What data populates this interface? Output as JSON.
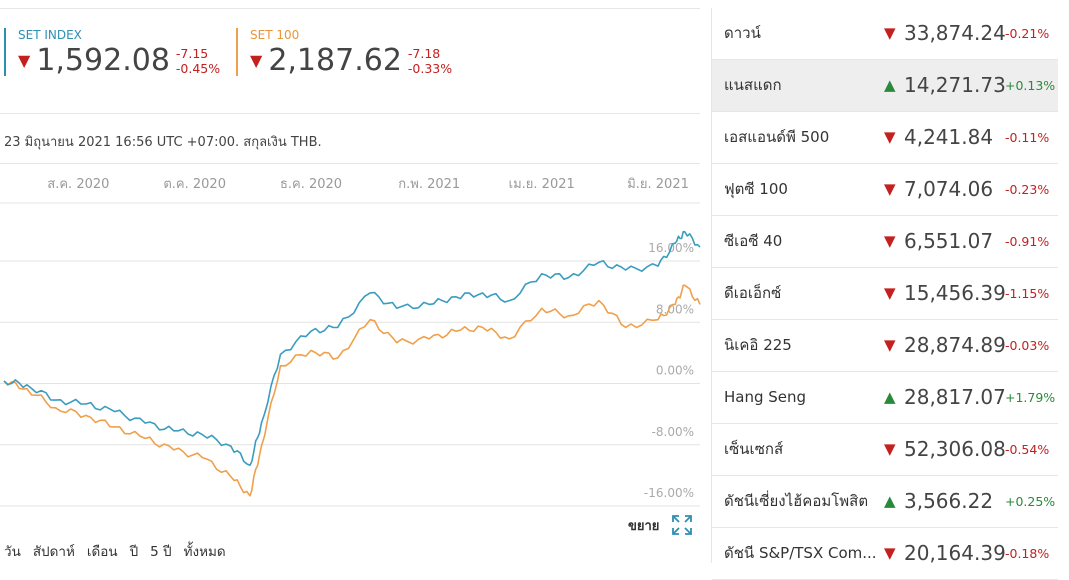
{
  "headline": [
    {
      "name": "SET INDEX",
      "value": "1,592.08",
      "change": "-7.15",
      "percent": "-0.45%",
      "direction": "down",
      "color": "#2e8fb3"
    },
    {
      "name": "SET 100",
      "value": "2,187.62",
      "change": "-7.18",
      "percent": "-0.33%",
      "direction": "down",
      "color": "#f0a04b"
    }
  ],
  "timestamp": "23 มิถุนายน 2021 16:56 UTC +07:00. สกุลเงิน THB.",
  "expand_label": "ขยาย",
  "ranges": [
    "วัน",
    "สัปดาห์",
    "เดือน",
    "ปี",
    "5 ปี",
    "ทั้งหมด"
  ],
  "chart_data": {
    "type": "line",
    "x_ticks": [
      "ส.ค. 2020",
      "ต.ค. 2020",
      "ธ.ค. 2020",
      "ก.พ. 2021",
      "เม.ย. 2021",
      "มิ.ย. 2021"
    ],
    "y_ticks": [
      "16.00%",
      "8.00%",
      "0.00%",
      "-8.00%",
      "-16.00%"
    ],
    "ylim": [
      -17,
      18
    ],
    "x_range": [
      "2020-06-23",
      "2021-06-23"
    ],
    "grid": true,
    "series": [
      {
        "name": "SET INDEX",
        "color": "#3a9cbf",
        "x": [
          "2020-06-23",
          "2020-07-05",
          "2020-07-20",
          "2020-08-05",
          "2020-08-20",
          "2020-09-05",
          "2020-09-20",
          "2020-10-05",
          "2020-10-20",
          "2020-10-30",
          "2020-11-05",
          "2020-11-15",
          "2020-12-01",
          "2020-12-15",
          "2021-01-01",
          "2021-01-15",
          "2021-02-01",
          "2021-02-15",
          "2021-03-01",
          "2021-03-15",
          "2021-04-01",
          "2021-04-15",
          "2021-05-01",
          "2021-05-15",
          "2021-06-01",
          "2021-06-10",
          "2021-06-15",
          "2021-06-23"
        ],
        "values": [
          -1.5,
          -2.0,
          -4.0,
          -4.5,
          -5.5,
          -7.0,
          -8.0,
          -8.5,
          -10.0,
          -12.5,
          -7.0,
          2.0,
          5.0,
          5.5,
          10.0,
          8.0,
          8.5,
          9.5,
          10.0,
          9.0,
          12.5,
          12.0,
          14.0,
          13.0,
          13.5,
          16.5,
          18.0,
          16.0
        ]
      },
      {
        "name": "SET 100",
        "color": "#f0a04b",
        "x": [
          "2020-06-23",
          "2020-07-05",
          "2020-07-20",
          "2020-08-05",
          "2020-08-20",
          "2020-09-05",
          "2020-09-20",
          "2020-10-05",
          "2020-10-20",
          "2020-10-30",
          "2020-11-05",
          "2020-11-15",
          "2020-12-01",
          "2020-12-15",
          "2021-01-01",
          "2021-01-15",
          "2021-02-01",
          "2021-02-15",
          "2021-03-01",
          "2021-03-15",
          "2021-04-01",
          "2021-04-15",
          "2021-05-01",
          "2021-05-15",
          "2021-06-01",
          "2021-06-10",
          "2021-06-15",
          "2021-06-23"
        ],
        "values": [
          -1.5,
          -2.5,
          -5.0,
          -6.0,
          -7.5,
          -9.0,
          -10.5,
          -11.5,
          -14.0,
          -16.5,
          -10.0,
          0.5,
          2.5,
          1.5,
          6.5,
          3.5,
          4.0,
          5.0,
          5.5,
          4.0,
          8.0,
          7.0,
          9.0,
          5.5,
          6.5,
          8.5,
          11.0,
          8.5
        ]
      }
    ]
  },
  "markets": [
    {
      "name": "ดาวน์",
      "value": "33,874.24",
      "percent": "-0.21%",
      "direction": "down"
    },
    {
      "name": "แนสแดก",
      "value": "14,271.73",
      "percent": "+0.13%",
      "direction": "up"
    },
    {
      "name": "เอสแอนด์พี 500",
      "value": "4,241.84",
      "percent": "-0.11%",
      "direction": "down"
    },
    {
      "name": "ฟุตซี 100",
      "value": "7,074.06",
      "percent": "-0.23%",
      "direction": "down"
    },
    {
      "name": "ซีเอซี 40",
      "value": "6,551.07",
      "percent": "-0.91%",
      "direction": "down"
    },
    {
      "name": "ดีเอเอ็กซ์",
      "value": "15,456.39",
      "percent": "-1.15%",
      "direction": "down"
    },
    {
      "name": "นิเคอิ 225",
      "value": "28,874.89",
      "percent": "-0.03%",
      "direction": "down"
    },
    {
      "name": "Hang Seng",
      "value": "28,817.07",
      "percent": "+1.79%",
      "direction": "up"
    },
    {
      "name": "เซ็นเซกส์",
      "value": "52,306.08",
      "percent": "-0.54%",
      "direction": "down"
    },
    {
      "name": "ดัชนีเซี่ยงไฮ้คอมโพสิต",
      "value": "3,566.22",
      "percent": "+0.25%",
      "direction": "up"
    },
    {
      "name": "ดัชนี S&P/TSX Com...",
      "value": "20,164.39",
      "percent": "-0.18%",
      "direction": "down"
    }
  ],
  "arrows": {
    "down": "▼",
    "up": "▲"
  }
}
